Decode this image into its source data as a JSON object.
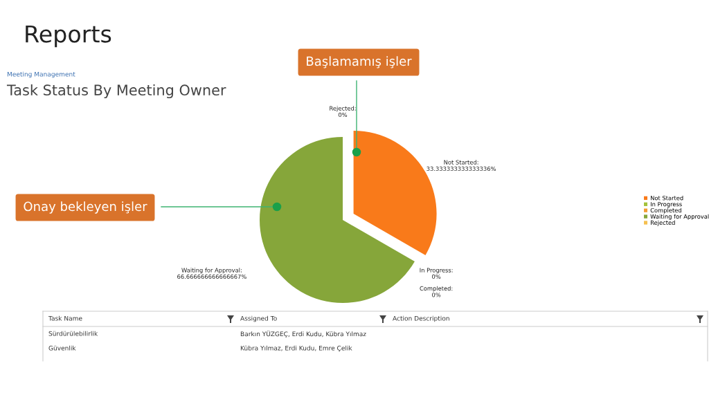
{
  "chart_data": {
    "type": "pie",
    "title": "Reports",
    "subtitle": "Task Status By Meeting Owner",
    "categories": [
      "Not Started",
      "In Progress",
      "Completed",
      "Waiting for Approval",
      "Rejected"
    ],
    "values": [
      33.333333333333336,
      0,
      0,
      66.66666666666667,
      0
    ],
    "value_labels": [
      "Not Started:\n33.333333333333336%",
      "In Progress:\n0%",
      "Completed:\n0%",
      "Waiting for Approval:\n66.666666666666667%",
      "Rejected:\n0%"
    ],
    "colors": [
      "#f97a1a",
      "#a3c23a",
      "#f39c33",
      "#86a63a",
      "#f5c050"
    ],
    "legend": "right",
    "annotations": [
      "Başlamamış işler",
      "Onay bekleyen işler",
      "Meeting Management",
      "Task Name",
      "Assigned To",
      "Action Description",
      "Sürdürülebilirlik",
      "Barkın YÜZGEÇ, Erdi Kudu, Kübra Yılmaz",
      "Güvenlik",
      "Kübra Yılmaz, Erdi Kudu, Emre Çelik"
    ]
  }
}
